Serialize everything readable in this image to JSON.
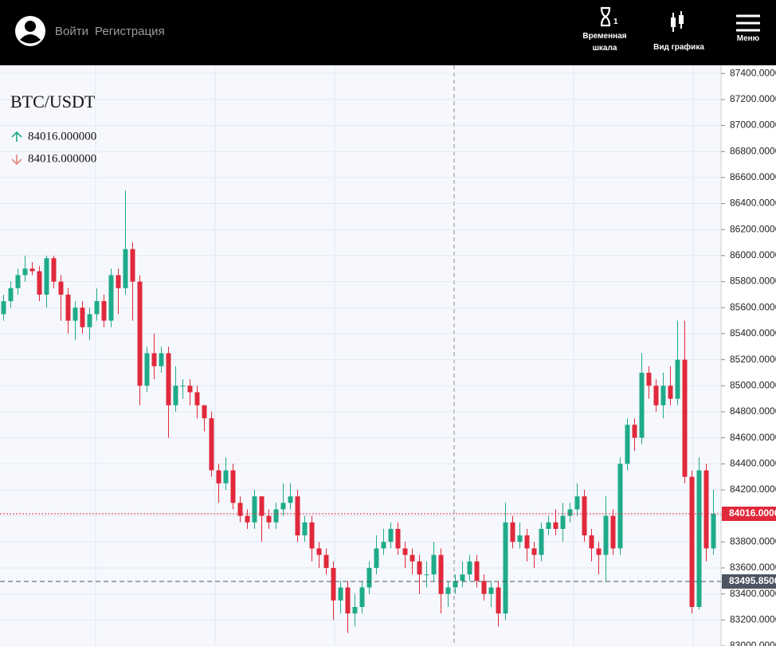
{
  "header": {
    "login": "Войти",
    "register": "Регистрация",
    "timeframe_label": "Временная шкала",
    "timeframe_value": 1,
    "chart_view": "Вид графика",
    "menu": "Меню"
  },
  "chart_data": {
    "type": "candlestick",
    "title": "BTC/USDT",
    "legend": [
      {
        "value": 84016,
        "label": "84016.000000",
        "color": "#1fab89"
      },
      {
        "value": 84016,
        "label": "84016.000000",
        "color": "#e0293b"
      }
    ],
    "up_color": "#1fab89",
    "down_color": "#e0293b",
    "grid": true,
    "ylim": [
      83000,
      87450
    ],
    "yticks": [
      {
        "value": 83000,
        "label": "83000.0000"
      },
      {
        "value": 83200,
        "label": "83200.0000"
      },
      {
        "value": 83400,
        "label": "83400.0000"
      },
      {
        "value": 83600,
        "label": "83600.0000"
      },
      {
        "value": 83800,
        "label": "83800.0000"
      },
      {
        "value": 84000,
        "label": "84000.0000"
      },
      {
        "value": 84200,
        "label": "84200.0000"
      },
      {
        "value": 84400,
        "label": "84400.0000"
      },
      {
        "value": 84600,
        "label": "84600.0000"
      },
      {
        "value": 84800,
        "label": "84800.0000"
      },
      {
        "value": 85000,
        "label": "85000.0000"
      },
      {
        "value": 85200,
        "label": "85200.0000"
      },
      {
        "value": 85400,
        "label": "85400.0000"
      },
      {
        "value": 85600,
        "label": "85600.0000"
      },
      {
        "value": 85800,
        "label": "85800.0000"
      },
      {
        "value": 86000,
        "label": "86000.0000"
      },
      {
        "value": 86200,
        "label": "86200.0000"
      },
      {
        "value": 86400,
        "label": "86400.0000"
      },
      {
        "value": 86600,
        "label": "86600.0000"
      },
      {
        "value": 86800,
        "label": "86800.0000"
      },
      {
        "value": 87000,
        "label": "87000.0000"
      },
      {
        "value": 87200,
        "label": "87200.0000"
      },
      {
        "value": 87400,
        "label": "87400.0000"
      }
    ],
    "price_lines": [
      {
        "value": 84016,
        "label": "84016.0000",
        "color": "#e0293b"
      },
      {
        "value": 83495.85,
        "label": "83495.8500",
        "color": "#4d5563"
      }
    ],
    "open": [
      85550,
      85650,
      85750,
      85850,
      85900,
      85880,
      85700,
      85980,
      85800,
      85700,
      85500,
      85600,
      85450,
      85550,
      85650,
      85500,
      85850,
      85750,
      86050,
      85800,
      85000,
      85250,
      85150,
      85250,
      84850,
      85000,
      85000,
      84950,
      84850,
      84750,
      84350,
      84250,
      84350,
      84100,
      84000,
      83950,
      84150,
      84000,
      83950,
      84050,
      84100,
      84150,
      83850,
      83950,
      83750,
      83700,
      83600,
      83350,
      83450,
      83250,
      83300,
      83450,
      83600,
      83750,
      83800,
      83900,
      83750,
      83700,
      83650,
      83550,
      83550,
      83700,
      83400,
      83450,
      83500,
      83550,
      83650,
      83500,
      83400,
      83450,
      83250,
      83950,
      83800,
      83850,
      83750,
      83700,
      83900,
      83950,
      83900,
      84000,
      84050,
      84150,
      83850,
      83750,
      83700,
      84000,
      83750,
      84400,
      84700,
      84600,
      85100,
      85000,
      84850,
      85000,
      84900,
      85200,
      84300,
      83300,
      84350,
      83750
    ],
    "close": [
      85650,
      85750,
      85850,
      85900,
      85880,
      85700,
      85980,
      85800,
      85700,
      85500,
      85600,
      85450,
      85550,
      85650,
      85500,
      85850,
      85750,
      86050,
      85800,
      85000,
      85250,
      85150,
      85250,
      84850,
      85000,
      85000,
      84950,
      84850,
      84750,
      84350,
      84250,
      84350,
      84100,
      84000,
      83950,
      84150,
      84000,
      83950,
      84050,
      84100,
      84150,
      83850,
      83950,
      83750,
      83700,
      83600,
      83350,
      83450,
      83250,
      83300,
      83450,
      83600,
      83750,
      83800,
      83900,
      83750,
      83700,
      83650,
      83550,
      83550,
      83700,
      83400,
      83450,
      83500,
      83550,
      83650,
      83500,
      83400,
      83450,
      83250,
      83950,
      83800,
      83850,
      83750,
      83700,
      83900,
      83950,
      83900,
      84000,
      84050,
      84150,
      83850,
      83750,
      83700,
      84000,
      83750,
      84400,
      84700,
      84600,
      85100,
      85000,
      84850,
      85000,
      84900,
      85200,
      84300,
      83300,
      84350,
      83750,
      84016
    ],
    "high": [
      85700,
      85800,
      85900,
      86000,
      85950,
      85920,
      86000,
      86000,
      85850,
      85750,
      85650,
      85650,
      85600,
      85750,
      85700,
      85900,
      85900,
      86500,
      86100,
      85850,
      85300,
      85400,
      85300,
      85300,
      85150,
      85050,
      85050,
      85000,
      84850,
      84800,
      84400,
      84450,
      84400,
      84150,
      84050,
      84200,
      84150,
      84050,
      84100,
      84250,
      84250,
      84200,
      84000,
      84000,
      83800,
      83750,
      83650,
      83500,
      83500,
      83400,
      83500,
      83650,
      83850,
      83900,
      83950,
      83950,
      83800,
      83750,
      83700,
      83650,
      83800,
      83750,
      83500,
      83550,
      83650,
      83700,
      83700,
      83550,
      83500,
      83500,
      84100,
      84000,
      83950,
      83900,
      83800,
      83950,
      84000,
      84050,
      84100,
      84100,
      84250,
      84200,
      83900,
      83800,
      84150,
      84050,
      84450,
      84750,
      84750,
      85250,
      85150,
      85050,
      85100,
      85150,
      85500,
      85500,
      84350,
      84450,
      84400,
      84200
    ],
    "low": [
      85500,
      85600,
      85700,
      85800,
      85850,
      85650,
      85600,
      85750,
      85500,
      85400,
      85350,
      85400,
      85350,
      85500,
      85450,
      85450,
      85550,
      85700,
      85500,
      84850,
      84950,
      85050,
      85100,
      84600,
      84800,
      84900,
      84850,
      84750,
      84650,
      84300,
      84100,
      84200,
      84050,
      83950,
      83900,
      83900,
      83800,
      83900,
      83900,
      84000,
      84050,
      83800,
      83800,
      83650,
      83600,
      83550,
      83200,
      83250,
      83100,
      83150,
      83250,
      83400,
      83550,
      83700,
      83750,
      83700,
      83600,
      83550,
      83400,
      83450,
      83500,
      83250,
      83300,
      83400,
      83450,
      83500,
      83450,
      83350,
      83300,
      83150,
      83200,
      83750,
      83750,
      83650,
      83600,
      83650,
      83850,
      83850,
      83800,
      83950,
      84000,
      83800,
      83650,
      83550,
      83500,
      83700,
      83700,
      84350,
      84500,
      84550,
      84900,
      84800,
      84750,
      84850,
      84850,
      84250,
      83250,
      83280,
      83650,
      83700
    ]
  }
}
